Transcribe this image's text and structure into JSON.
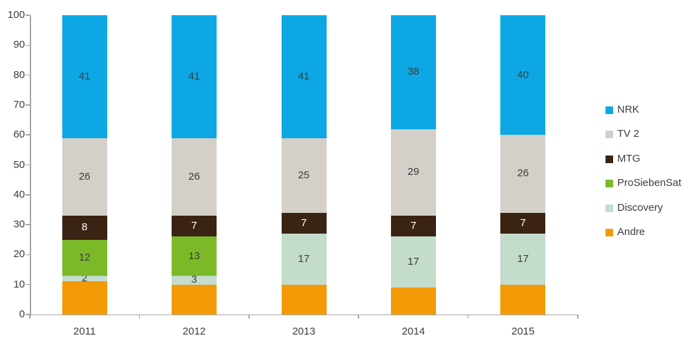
{
  "chart_data": {
    "type": "bar",
    "stacked": true,
    "title": "",
    "xlabel": "",
    "ylabel": "",
    "grid": false,
    "ylim": [
      0,
      100
    ],
    "ytick_step": 10,
    "categories": [
      "2011",
      "2012",
      "2013",
      "2014",
      "2015"
    ],
    "series": [
      {
        "name": "Andre",
        "color": "#F39A06",
        "values": [
          11,
          10,
          10,
          9,
          10
        ],
        "show_labels": false,
        "label_color": "#3C3C3C"
      },
      {
        "name": "Discovery",
        "color": "#C3DCCB",
        "values": [
          2,
          3,
          17,
          17,
          17
        ],
        "show_labels": true,
        "label_color": "#3C3C3C"
      },
      {
        "name": "ProSiebenSat",
        "color": "#7CB928",
        "values": [
          12,
          13,
          0,
          0,
          0
        ],
        "show_labels": true,
        "label_color": "#3C3C3C"
      },
      {
        "name": "MTG",
        "color": "#3B2314",
        "values": [
          8,
          7,
          7,
          7,
          7
        ],
        "show_labels": true,
        "label_color": "#FFFFFF"
      },
      {
        "name": "TV 2",
        "color": "#D4CFC8",
        "values": [
          26,
          26,
          25,
          29,
          26
        ],
        "show_labels": true,
        "label_color": "#3C3C3C"
      },
      {
        "name": "NRK",
        "color": "#0DA8E4",
        "values": [
          41,
          41,
          41,
          38,
          40
        ],
        "show_labels": true,
        "label_color": "#3C3C3C"
      }
    ],
    "legend": [
      "NRK",
      "TV 2",
      "MTG",
      "ProSiebenSat",
      "Discovery",
      "Andre"
    ],
    "legend_position": "right"
  },
  "style": {
    "axis_color": "#A6A6A6",
    "text_color": "#3C3C3C",
    "background": "#FFFFFF"
  }
}
